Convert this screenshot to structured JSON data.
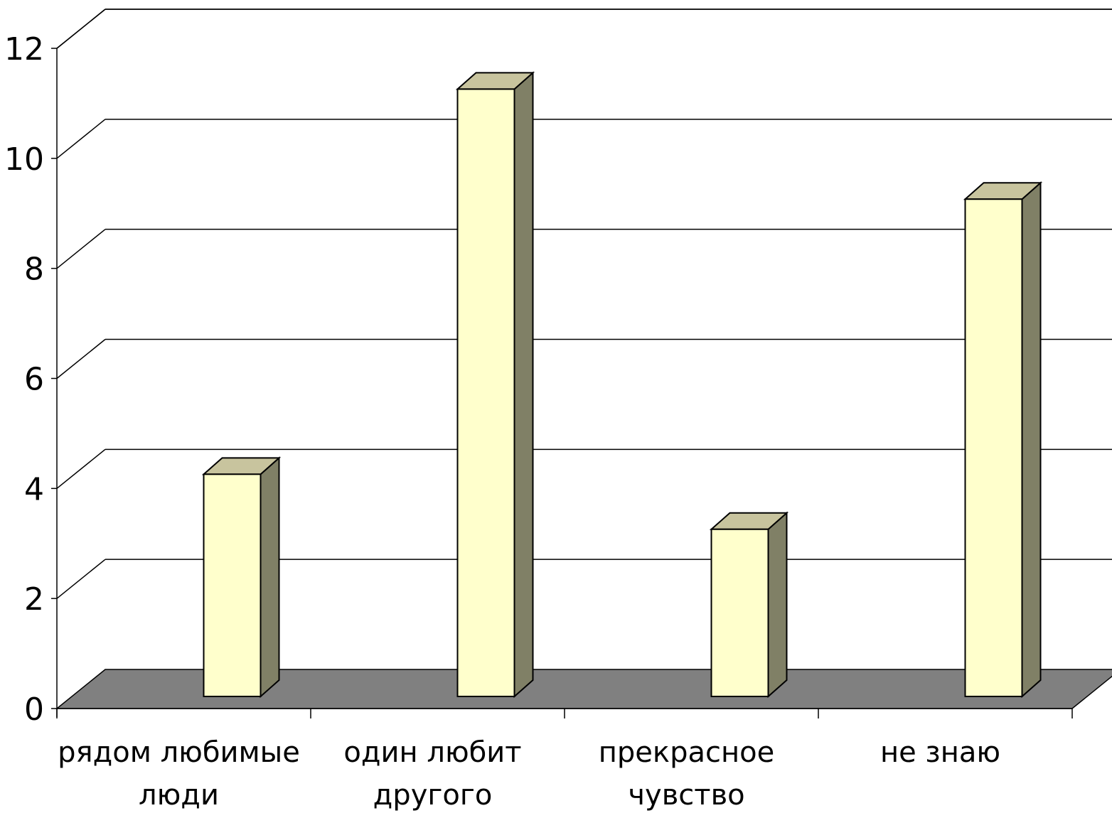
{
  "chart_data": {
    "type": "bar",
    "title": "",
    "xlabel": "",
    "ylabel": "",
    "categories": [
      [
        "рядом любимые",
        "люди"
      ],
      [
        "один любит",
        "другого"
      ],
      [
        "прекрасное",
        "чувство"
      ],
      [
        "не знаю"
      ]
    ],
    "values": [
      4,
      11,
      3,
      9
    ],
    "ylim": [
      0,
      12
    ],
    "yticks": [
      0,
      2,
      4,
      6,
      8,
      10,
      12
    ],
    "grid": true,
    "three_d": true,
    "colors": {
      "bar_front": "#ffffcc",
      "bar_side": "#808066",
      "bar_top": "#c8c49e",
      "floor": "#808080",
      "grid": "#000000"
    }
  }
}
